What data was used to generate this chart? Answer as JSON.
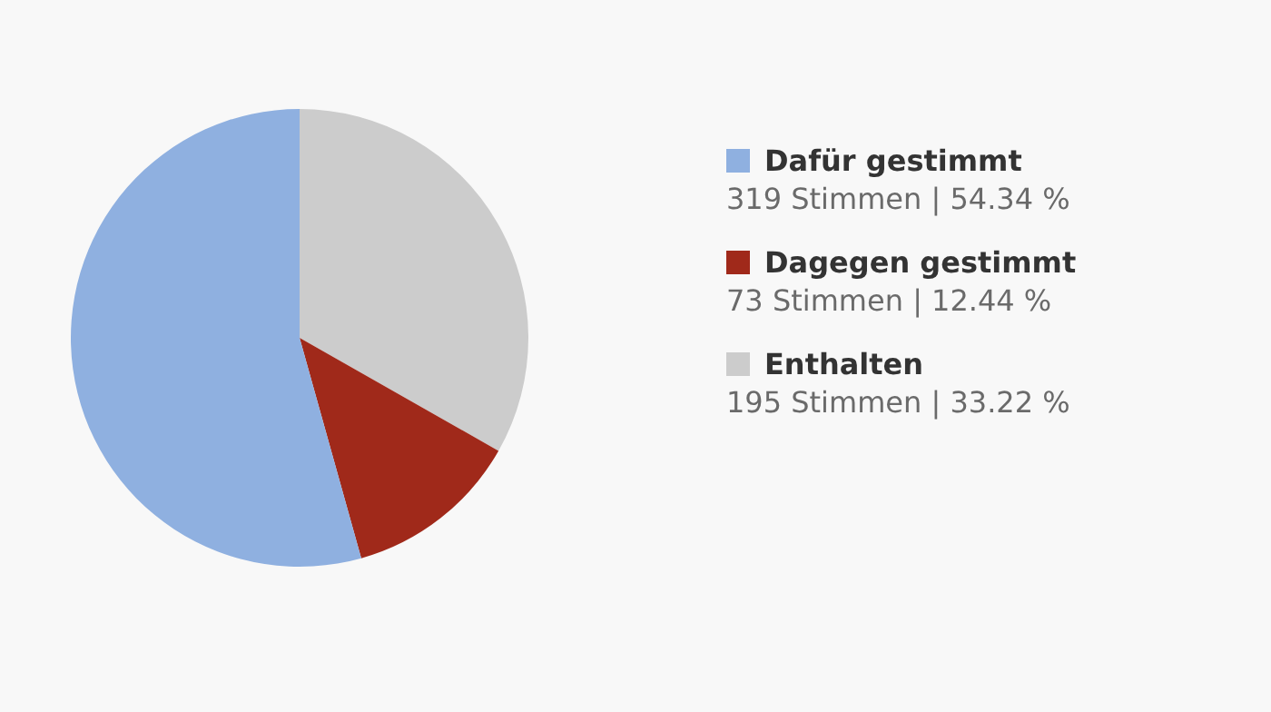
{
  "chart_data": {
    "type": "pie",
    "categories": [
      "Dafür gestimmt",
      "Dagegen gestimmt",
      "Enthalten"
    ],
    "values": [
      319,
      73,
      195
    ],
    "colors": [
      "#8fb0e0",
      "#a0291a",
      "#cccccc"
    ],
    "value_labels": [
      "319 Stimmen | 54.34 %",
      "73 Stimmen | 12.44 %",
      "195 Stimmen | 33.22 %"
    ],
    "legend": "right"
  }
}
